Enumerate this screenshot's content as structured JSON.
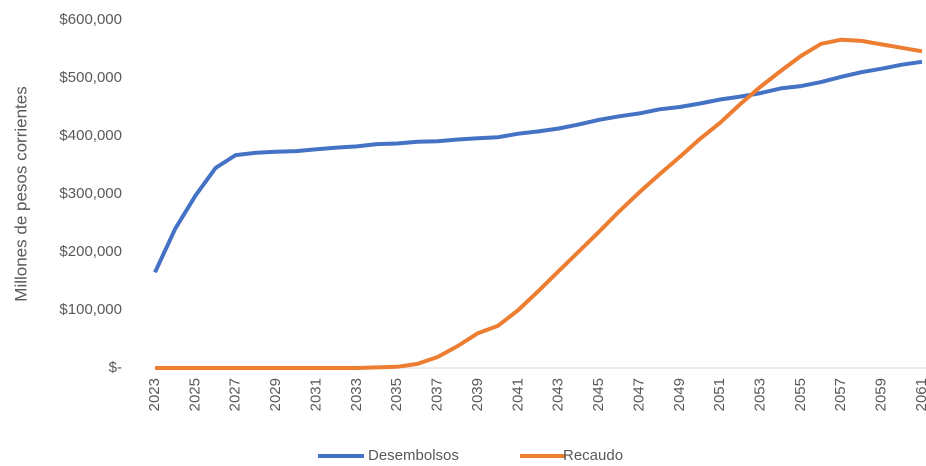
{
  "chart_data": {
    "type": "line",
    "y_label": "Millones de pesos corrientes",
    "x": [
      2023,
      2024,
      2025,
      2026,
      2027,
      2028,
      2029,
      2030,
      2031,
      2032,
      2033,
      2034,
      2035,
      2036,
      2037,
      2038,
      2039,
      2040,
      2041,
      2042,
      2043,
      2044,
      2045,
      2046,
      2047,
      2048,
      2049,
      2050,
      2051,
      2052,
      2053,
      2054,
      2055,
      2056,
      2057,
      2058,
      2059,
      2060,
      2061
    ],
    "xlim": [
      2023,
      2061
    ],
    "xticks": [
      2023,
      2025,
      2027,
      2029,
      2031,
      2033,
      2035,
      2037,
      2039,
      2041,
      2043,
      2045,
      2047,
      2049,
      2051,
      2053,
      2055,
      2057,
      2059,
      2061
    ],
    "ylim": [
      0,
      600000
    ],
    "yticks": [
      {
        "value": 0,
        "label": "$-"
      },
      {
        "value": 100000,
        "label": "$100,000"
      },
      {
        "value": 200000,
        "label": "$200,000"
      },
      {
        "value": 300000,
        "label": "$300,000"
      },
      {
        "value": 400000,
        "label": "$400,000"
      },
      {
        "value": 500000,
        "label": "$500,000"
      },
      {
        "value": 600000,
        "label": "$600,000"
      }
    ],
    "grid": false,
    "legend": "bottom",
    "series": [
      {
        "name": "Desembolsos",
        "color": "#4472c4",
        "values": [
          165000,
          240000,
          297000,
          345000,
          367000,
          371000,
          373000,
          374000,
          377000,
          380000,
          382000,
          386000,
          387000,
          390000,
          391000,
          394000,
          396000,
          398000,
          404000,
          408000,
          413000,
          420000,
          428000,
          434000,
          439000,
          446000,
          450000,
          456000,
          463000,
          468000,
          474000,
          482000,
          486000,
          493000,
          502000,
          510000,
          516000,
          523000,
          528000
        ]
      },
      {
        "name": "Recaudo",
        "color": "#ed7d31",
        "values": [
          0,
          0,
          0,
          0,
          0,
          0,
          0,
          0,
          0,
          0,
          0,
          1000,
          2000,
          7000,
          19000,
          38000,
          60000,
          73000,
          100000,
          133000,
          167000,
          201000,
          235000,
          270000,
          303000,
          334000,
          364000,
          395000,
          423000,
          455000,
          485000,
          512000,
          538000,
          559000,
          566000,
          564000,
          558000,
          552000,
          546000
        ]
      }
    ]
  }
}
